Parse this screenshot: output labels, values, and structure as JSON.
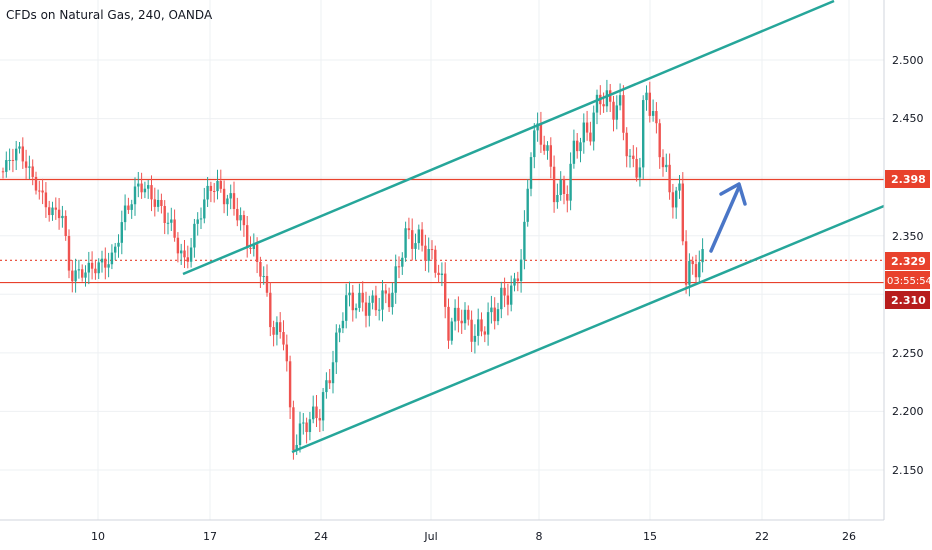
{
  "header": {
    "title": "CFDs on Natural Gas, 240, OANDA"
  },
  "chart_data": {
    "type": "candlestick",
    "title": "CFDs on Natural Gas, 240, OANDA",
    "x_ticks": [
      "10",
      "17",
      "24",
      "Jul",
      "8",
      "15",
      "22",
      "26"
    ],
    "y_ticks": [
      "2.500",
      "2.450",
      "2.350",
      "2.250",
      "2.200",
      "2.150"
    ],
    "ylim": [
      2.125,
      2.56
    ],
    "grid": true,
    "price_levels": [
      {
        "label": "2.398",
        "value": 2.398,
        "style": "solid",
        "color": "#e8412c"
      },
      {
        "label": "2.310",
        "value": 2.31,
        "style": "solid",
        "color": "#e8412c"
      },
      {
        "label": "2.329",
        "value": 2.329,
        "style": "dotted",
        "color": "#e8412c"
      }
    ],
    "countdown": "03:55:54",
    "colors": {
      "up": "#26a69a",
      "down": "#ef5350",
      "channel": "#26a69a",
      "arrow": "#4a76c7"
    }
  }
}
